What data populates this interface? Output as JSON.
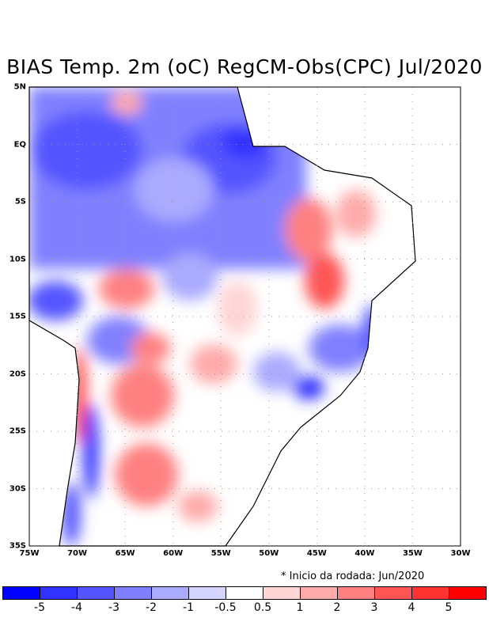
{
  "title": "BIAS Temp. 2m (oC) RegCM-Obs(CPC) Jul/2020",
  "note": "* Inicio da rodada: Jun/2020",
  "axes": {
    "lon_labels": [
      "75W",
      "70W",
      "65W",
      "60W",
      "55W",
      "50W",
      "45W",
      "40W",
      "35W",
      "30W"
    ],
    "lat_labels": [
      "5N",
      "EQ",
      "5S",
      "10S",
      "15S",
      "20S",
      "25S",
      "30S",
      "35S"
    ]
  },
  "colorbar": {
    "colors": [
      "#0000ff",
      "#3232ff",
      "#5555ff",
      "#8080ff",
      "#aaaaff",
      "#d5d5ff",
      "#ffffff",
      "#ffd5d5",
      "#ffaaaa",
      "#ff8080",
      "#ff5555",
      "#ff3232",
      "#ff0000"
    ],
    "labels": [
      "-5",
      "-4",
      "-3",
      "-2",
      "-1",
      "-0.5",
      "0.5",
      "1",
      "2",
      "3",
      "4",
      "5"
    ]
  }
}
